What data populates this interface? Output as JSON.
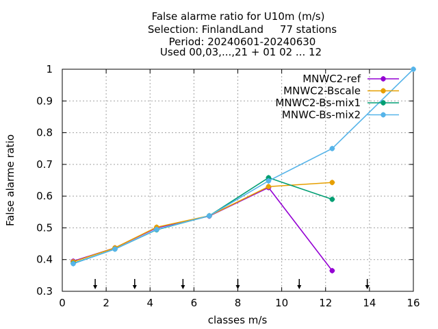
{
  "chart_data": {
    "type": "line",
    "title_lines": [
      "False alarme ratio  for U10m (m/s)",
      "Selection: FinlandLand     77 stations",
      "Period: 20240601-20240630",
      "Used 00,03,...,21 + 01 02 ... 12"
    ],
    "xlabel": "classes m/s",
    "ylabel": "False alarme ratio",
    "xlim": [
      0,
      16
    ],
    "ylim": [
      0.3,
      1.0
    ],
    "xticks": [
      0,
      2,
      4,
      6,
      8,
      10,
      12,
      14,
      16
    ],
    "yticks": [
      0.3,
      0.4,
      0.5,
      0.6,
      0.7,
      0.8,
      0.9,
      1.0
    ],
    "ytick_labels": [
      "0.3",
      "0.4",
      "0.5",
      "0.6",
      "0.7",
      "0.8",
      "0.9",
      "1"
    ],
    "grid": true,
    "legend_position": "top-right",
    "class_arrows_x": [
      1.5,
      3.3,
      5.5,
      8.0,
      10.8,
      13.9
    ],
    "series": [
      {
        "name": "MNWC2-ref",
        "color": "#9400d3",
        "x": [
          0.5,
          2.4,
          4.3,
          6.7,
          9.4,
          12.3
        ],
        "y": [
          0.395,
          0.437,
          0.5,
          0.537,
          0.627,
          0.365
        ]
      },
      {
        "name": "MNWC2-Bscale",
        "color": "#e69f00",
        "x": [
          0.5,
          2.4,
          4.3,
          6.7,
          9.4,
          12.3
        ],
        "y": [
          0.393,
          0.437,
          0.502,
          0.538,
          0.63,
          0.643
        ]
      },
      {
        "name": "MNWC2-Bs-mix1",
        "color": "#009e73",
        "x": [
          0.5,
          2.4,
          4.3,
          6.7,
          9.4,
          12.3
        ],
        "y": [
          0.388,
          0.433,
          0.494,
          0.538,
          0.658,
          0.59
        ]
      },
      {
        "name": "MNWC-Bs-mix2",
        "color": "#56b4e9",
        "x": [
          0.5,
          2.4,
          4.3,
          6.7,
          9.4,
          12.3,
          16.0
        ],
        "y": [
          0.387,
          0.433,
          0.495,
          0.538,
          0.648,
          0.75,
          1.0
        ]
      }
    ]
  }
}
